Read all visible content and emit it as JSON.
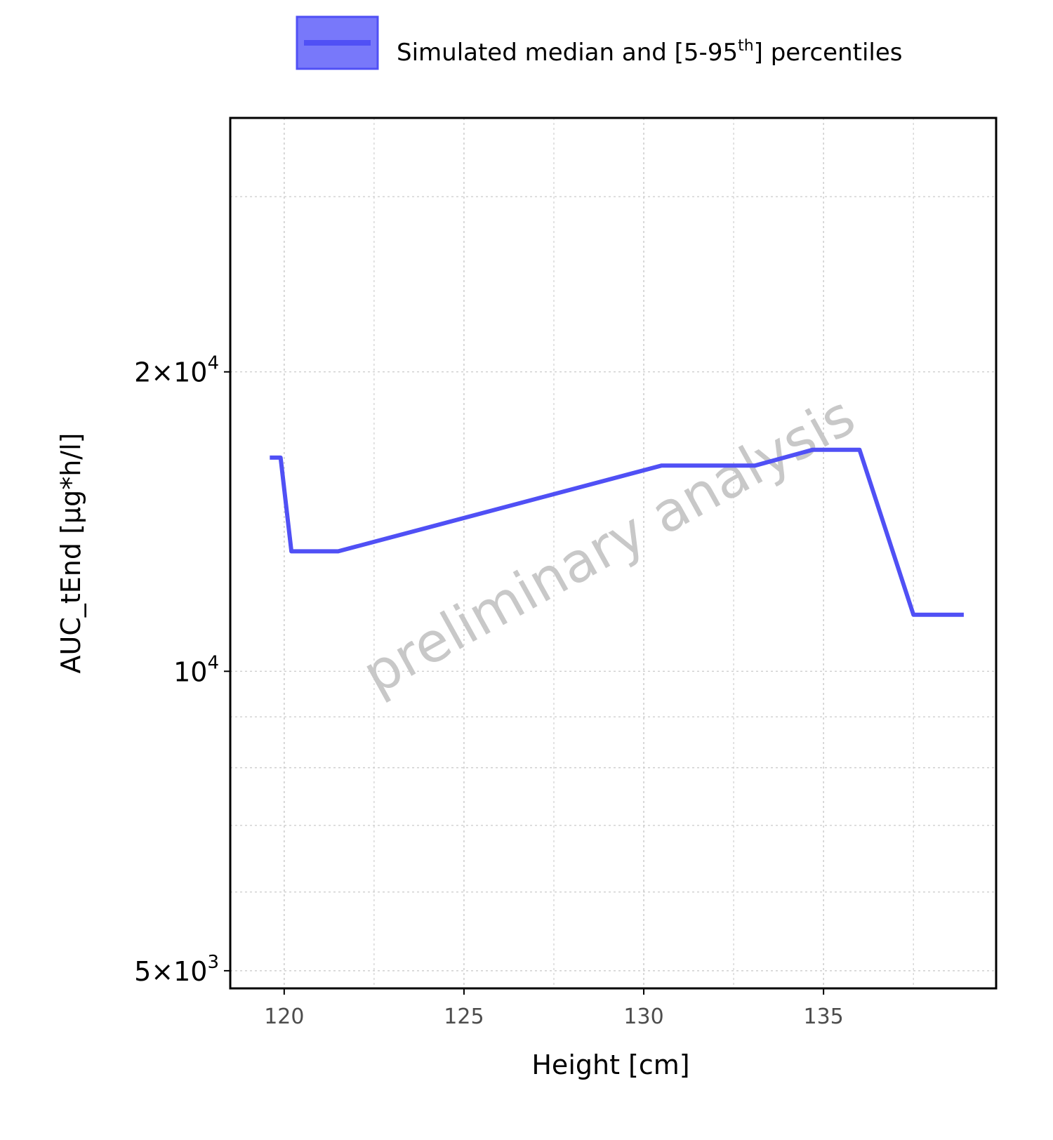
{
  "chart_data": {
    "type": "line",
    "xlabel": "Height [cm]",
    "ylabel": "AUC_tEnd [µg*h/l]",
    "y_scale": "log",
    "xlim": [
      118.5,
      139.8
    ],
    "ylim": [
      4800,
      36000
    ],
    "x_ticks": [
      120,
      125,
      130,
      135
    ],
    "x_tick_labels": [
      "120",
      "125",
      "130",
      "135"
    ],
    "y_ticks": [
      {
        "value": 5000,
        "mantissa": "5",
        "times": "×",
        "base": "10",
        "exp": "3"
      },
      {
        "value": 10000,
        "mantissa": "",
        "times": "",
        "base": "10",
        "exp": "4"
      },
      {
        "value": 20000,
        "mantissa": "2",
        "times": "×",
        "base": "10",
        "exp": "4"
      }
    ],
    "grid": true,
    "legend_position": "top",
    "series": [
      {
        "name": "Simulated median and [5-95th] percentiles",
        "color": "#5050f5",
        "x": [
          119.6,
          119.9,
          120.2,
          121.5,
          130.5,
          133.1,
          134.7,
          136.0,
          137.5,
          138.9
        ],
        "y": [
          16400,
          16400,
          13200,
          13200,
          16100,
          16100,
          16700,
          16700,
          11400,
          11400
        ]
      }
    ]
  },
  "legend": {
    "label_main": "Simulated median and [5-95",
    "label_sup": "th",
    "label_end": "] percentiles",
    "fill_color": "#7878fa",
    "border_color": "#5050f5"
  },
  "watermark": {
    "text": "preliminary analysis"
  }
}
